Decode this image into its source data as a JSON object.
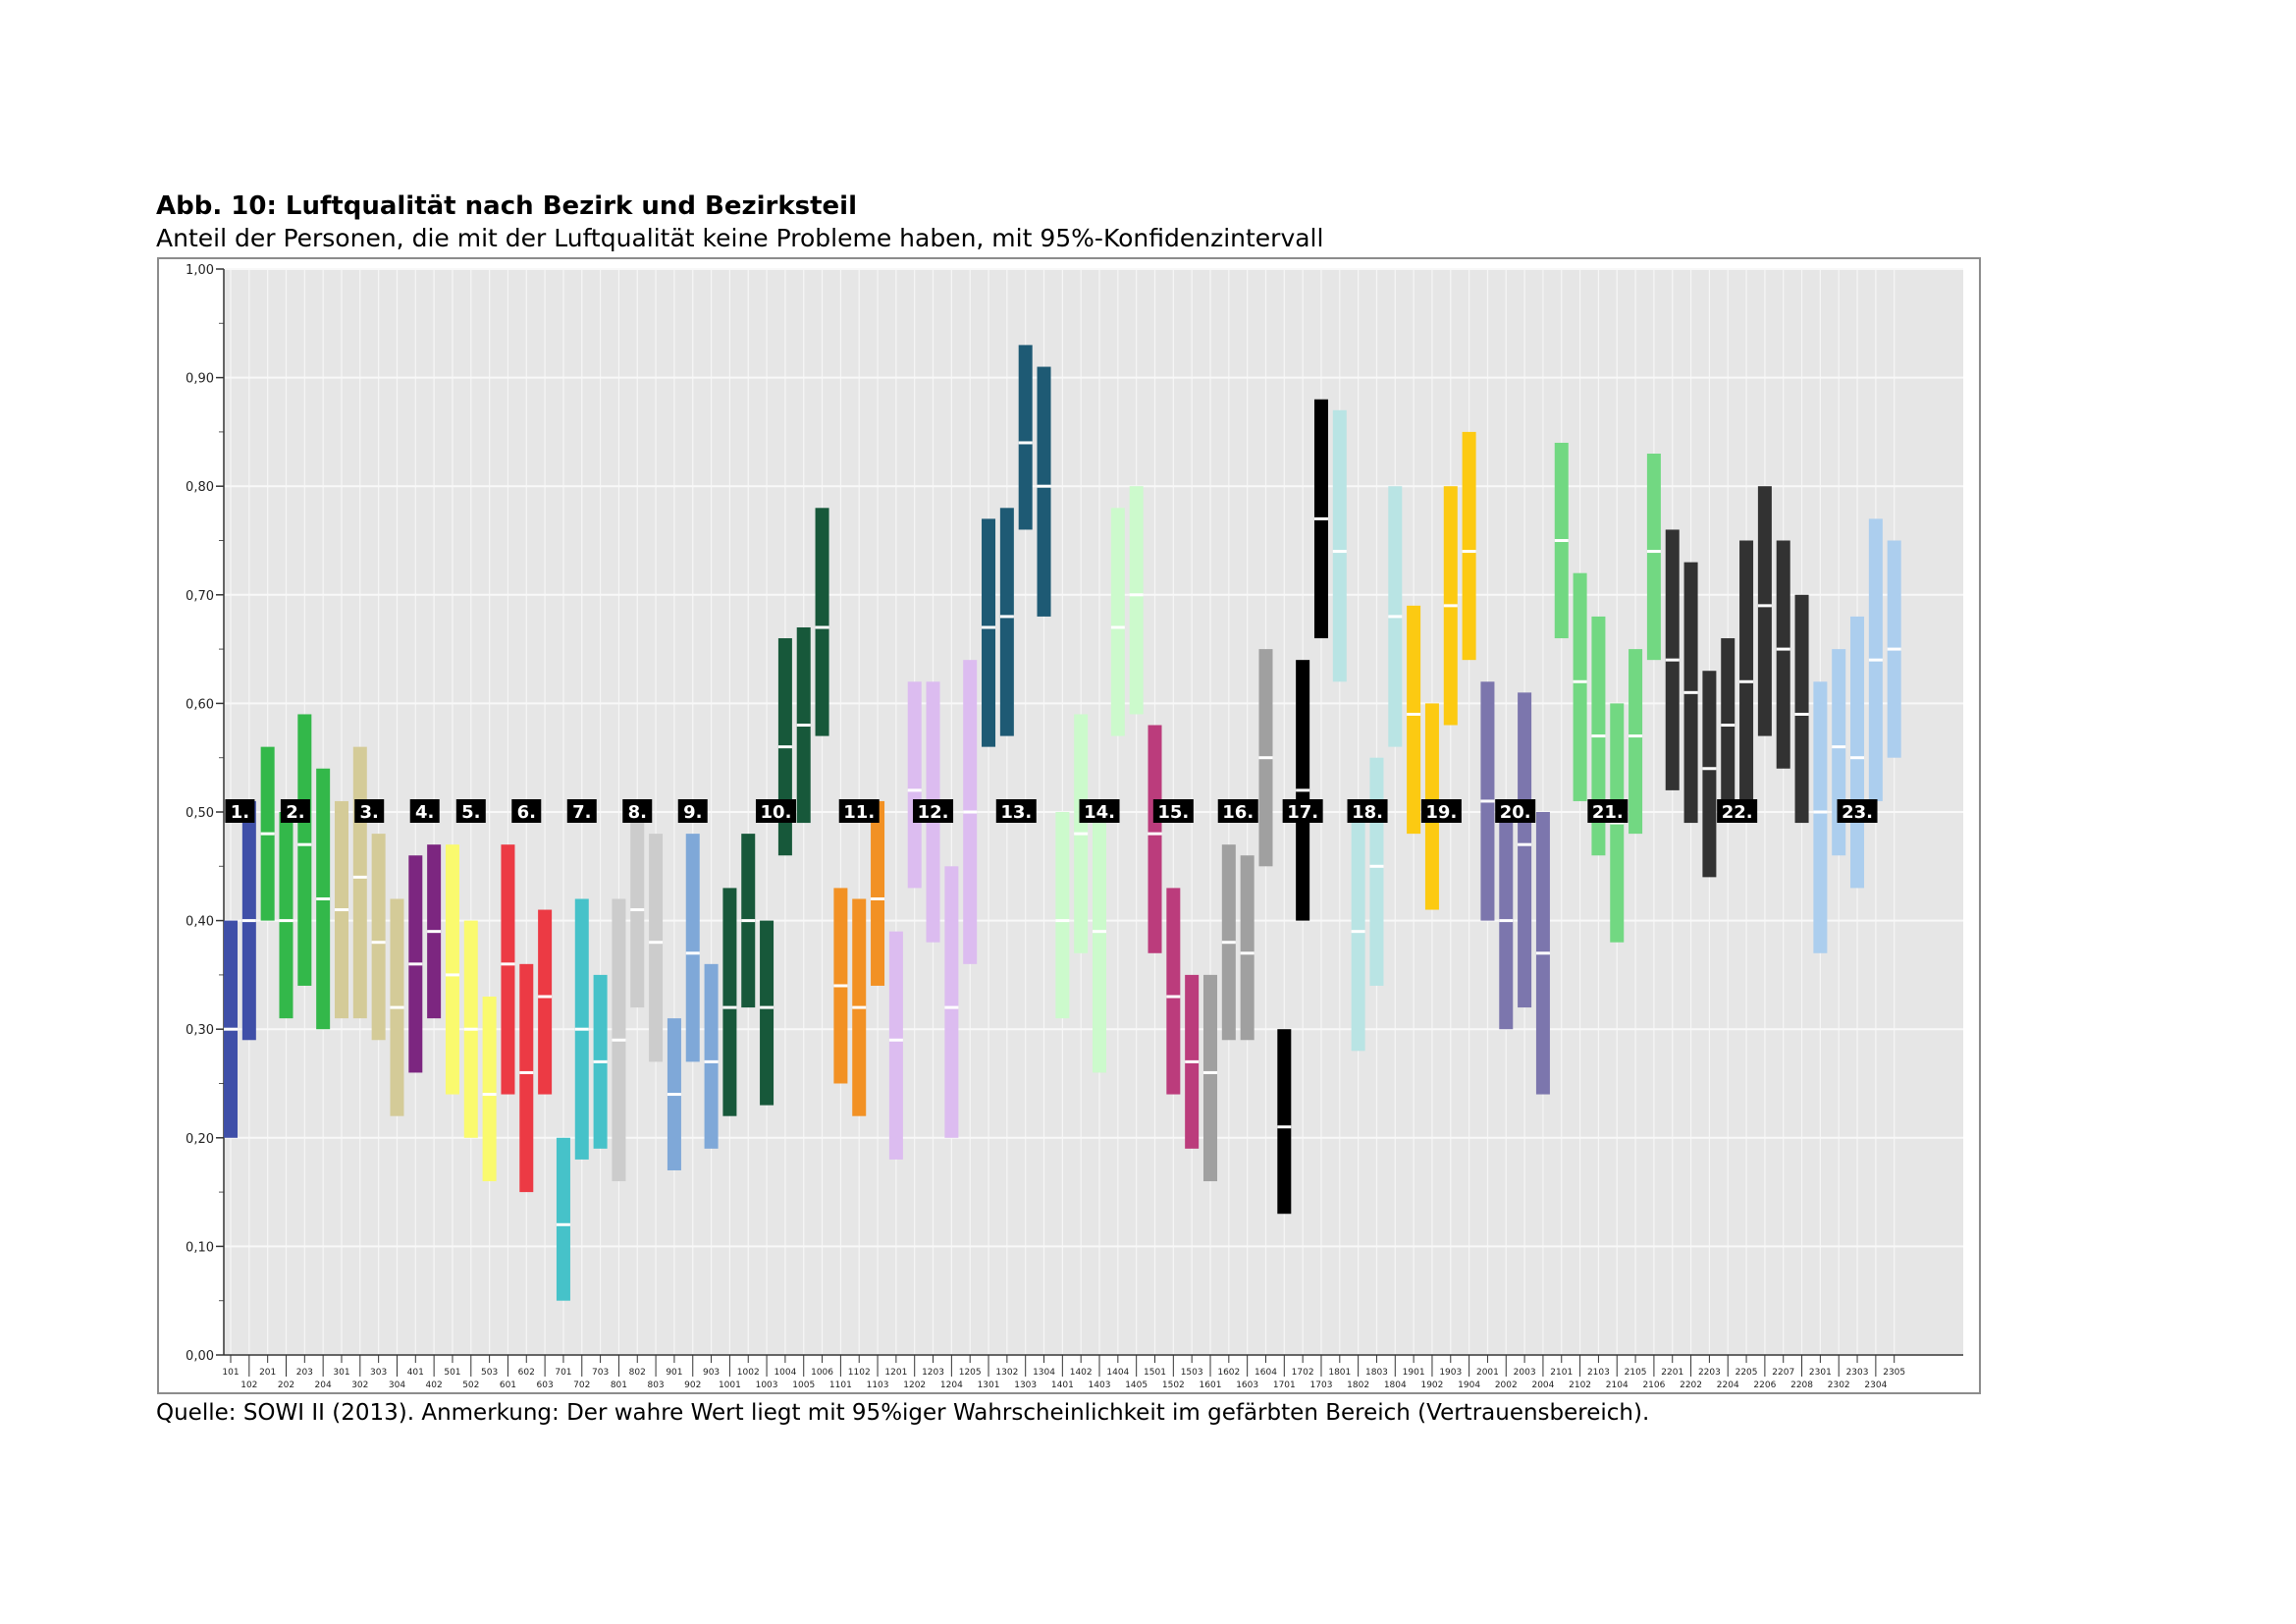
{
  "figure": {
    "title": "Abb. 10: Luftqualität nach Bezirk und Bezirksteil",
    "subtitle": "Anteil der Personen, die mit der Luftqualität keine Probleme haben, mit 95%-Konfidenzintervall",
    "note": "Quelle: SOWI II (2013). Anmerkung: Der wahre Wert liegt mit 95%iger Wahrscheinlichkeit im gefärbten Bereich (Vertrauensbereich)."
  },
  "chart_data": {
    "type": "interval",
    "title": "Abb. 10: Luftqualität nach Bezirk und Bezirksteil",
    "subtitle": "Anteil der Personen, die mit der Luftqualität keine Probleme haben, mit 95%-Konfidenzintervall",
    "ylim": [
      0,
      1
    ],
    "yticks": [
      0,
      0.1,
      0.2,
      0.3,
      0.4,
      0.5,
      0.6,
      0.7,
      0.8,
      0.9,
      1.0
    ],
    "ytick_labels": [
      "0,00",
      "0,10",
      "0,20",
      "0,30",
      "0,40",
      "0,50",
      "0,60",
      "0,70",
      "0,80",
      "0,90",
      "1,00"
    ],
    "grid": true,
    "district_colors": {
      "1": "#3f4fa8",
      "2": "#33b84a",
      "3": "#d4cb98",
      "4": "#7c2680",
      "5": "#fafa6e",
      "6": "#ec3a44",
      "7": "#46c2c9",
      "8": "#cccccc",
      "9": "#7fa8d8",
      "10": "#17583a",
      "11": "#f29124",
      "12": "#dcbcf0",
      "13": "#1e5a74",
      "14": "#ccfacc",
      "15": "#bb3c7c",
      "16": "#a0a0a0",
      "17": "#000000",
      "18": "#b9e4e4",
      "19": "#fcca12",
      "20": "#7c76ad",
      "21": "#72d882",
      "22": "#323232",
      "23": "#acceee"
    },
    "districts": [
      {
        "label": "1.",
        "parts": [
          "101",
          "102"
        ]
      },
      {
        "label": "2.",
        "parts": [
          "201",
          "202",
          "203",
          "204"
        ]
      },
      {
        "label": "3.",
        "parts": [
          "301",
          "302",
          "303",
          "304"
        ]
      },
      {
        "label": "4.",
        "parts": [
          "401",
          "402"
        ]
      },
      {
        "label": "5.",
        "parts": [
          "501",
          "502",
          "503"
        ]
      },
      {
        "label": "6.",
        "parts": [
          "601",
          "602",
          "603"
        ]
      },
      {
        "label": "7.",
        "parts": [
          "701",
          "702",
          "703"
        ]
      },
      {
        "label": "8.",
        "parts": [
          "801",
          "802",
          "803"
        ]
      },
      {
        "label": "9.",
        "parts": [
          "901",
          "902",
          "903"
        ]
      },
      {
        "label": "10.",
        "parts": [
          "1001",
          "1002",
          "1003",
          "1004",
          "1005",
          "1006"
        ]
      },
      {
        "label": "11.",
        "parts": [
          "1101",
          "1102",
          "1103"
        ]
      },
      {
        "label": "12.",
        "parts": [
          "1201",
          "1202",
          "1203",
          "1204",
          "1205"
        ]
      },
      {
        "label": "13.",
        "parts": [
          "1301",
          "1302",
          "1303",
          "1304"
        ]
      },
      {
        "label": "14.",
        "parts": [
          "1401",
          "1402",
          "1403",
          "1404",
          "1405"
        ]
      },
      {
        "label": "15.",
        "parts": [
          "1501",
          "1502",
          "1503"
        ]
      },
      {
        "label": "16.",
        "parts": [
          "1601",
          "1602",
          "1603",
          "1604"
        ]
      },
      {
        "label": "17.",
        "parts": [
          "1701",
          "1702",
          "1703"
        ]
      },
      {
        "label": "18.",
        "parts": [
          "1801",
          "1802",
          "1803",
          "1804"
        ]
      },
      {
        "label": "19.",
        "parts": [
          "1901",
          "1902",
          "1903",
          "1904"
        ]
      },
      {
        "label": "20.",
        "parts": [
          "2001",
          "2002",
          "2003",
          "2004"
        ]
      },
      {
        "label": "21.",
        "parts": [
          "2101",
          "2102",
          "2103",
          "2104",
          "2105",
          "2106"
        ]
      },
      {
        "label": "22.",
        "parts": [
          "2201",
          "2202",
          "2203",
          "2204",
          "2205",
          "2206",
          "2207",
          "2208"
        ]
      },
      {
        "label": "23.",
        "parts": [
          "2301",
          "2302",
          "2303",
          "2304",
          "2305"
        ]
      }
    ],
    "x_labels_top": [
      "101",
      "201",
      "203",
      "301",
      "303",
      "401",
      "501",
      "503",
      "602",
      "701",
      "703",
      "802",
      "901",
      "903",
      "1002",
      "1004",
      "1006",
      "1102",
      "1201",
      "1203",
      "1205",
      "1302",
      "1304",
      "1402",
      "1404",
      "1501",
      "1503",
      "1602",
      "1604",
      "1702",
      "1801",
      "1803",
      "1901",
      "1903",
      "2001",
      "2003",
      "2101",
      "2103",
      "2105",
      "2201",
      "2203",
      "2205",
      "2207",
      "2301",
      "2303",
      "2305"
    ],
    "x_labels_bottom": [
      "102",
      "202",
      "204",
      "302",
      "304",
      "402",
      "502",
      "601",
      "603",
      "702",
      "801",
      "803",
      "902",
      "1001",
      "1003",
      "1005",
      "1101",
      "1103",
      "1202",
      "1204",
      "1301",
      "1303",
      "1401",
      "1403",
      "1405",
      "1502",
      "1601",
      "1603",
      "1701",
      "1703",
      "1802",
      "1804",
      "1902",
      "1904",
      "2002",
      "2004",
      "2102",
      "2104",
      "2106",
      "2202",
      "2204",
      "2206",
      "2208",
      "2302",
      "2304"
    ],
    "series": [
      {
        "name": "101",
        "district": 1,
        "lo": 0.2,
        "est": 0.3,
        "hi": 0.4
      },
      {
        "name": "102",
        "district": 1,
        "lo": 0.29,
        "est": 0.4,
        "hi": 0.51
      },
      {
        "name": "201",
        "district": 2,
        "lo": 0.4,
        "est": 0.48,
        "hi": 0.56
      },
      {
        "name": "202",
        "district": 2,
        "lo": 0.31,
        "est": 0.4,
        "hi": 0.5
      },
      {
        "name": "203",
        "district": 2,
        "lo": 0.34,
        "est": 0.47,
        "hi": 0.59
      },
      {
        "name": "204",
        "district": 2,
        "lo": 0.3,
        "est": 0.42,
        "hi": 0.54
      },
      {
        "name": "301",
        "district": 3,
        "lo": 0.31,
        "est": 0.41,
        "hi": 0.51
      },
      {
        "name": "302",
        "district": 3,
        "lo": 0.31,
        "est": 0.44,
        "hi": 0.56
      },
      {
        "name": "303",
        "district": 3,
        "lo": 0.29,
        "est": 0.38,
        "hi": 0.48
      },
      {
        "name": "304",
        "district": 3,
        "lo": 0.22,
        "est": 0.32,
        "hi": 0.42
      },
      {
        "name": "401",
        "district": 4,
        "lo": 0.26,
        "est": 0.36,
        "hi": 0.46
      },
      {
        "name": "402",
        "district": 4,
        "lo": 0.31,
        "est": 0.39,
        "hi": 0.47
      },
      {
        "name": "501",
        "district": 5,
        "lo": 0.24,
        "est": 0.35,
        "hi": 0.47
      },
      {
        "name": "502",
        "district": 5,
        "lo": 0.2,
        "est": 0.3,
        "hi": 0.4
      },
      {
        "name": "503",
        "district": 5,
        "lo": 0.16,
        "est": 0.24,
        "hi": 0.33
      },
      {
        "name": "601",
        "district": 6,
        "lo": 0.24,
        "est": 0.36,
        "hi": 0.47
      },
      {
        "name": "602",
        "district": 6,
        "lo": 0.15,
        "est": 0.26,
        "hi": 0.36
      },
      {
        "name": "603",
        "district": 6,
        "lo": 0.24,
        "est": 0.33,
        "hi": 0.41
      },
      {
        "name": "701",
        "district": 7,
        "lo": 0.05,
        "est": 0.12,
        "hi": 0.2
      },
      {
        "name": "702",
        "district": 7,
        "lo": 0.18,
        "est": 0.3,
        "hi": 0.42
      },
      {
        "name": "703",
        "district": 7,
        "lo": 0.19,
        "est": 0.27,
        "hi": 0.35
      },
      {
        "name": "801",
        "district": 8,
        "lo": 0.16,
        "est": 0.29,
        "hi": 0.42
      },
      {
        "name": "802",
        "district": 8,
        "lo": 0.32,
        "est": 0.41,
        "hi": 0.5
      },
      {
        "name": "803",
        "district": 8,
        "lo": 0.27,
        "est": 0.38,
        "hi": 0.48
      },
      {
        "name": "901",
        "district": 9,
        "lo": 0.17,
        "est": 0.24,
        "hi": 0.31
      },
      {
        "name": "902",
        "district": 9,
        "lo": 0.27,
        "est": 0.37,
        "hi": 0.48
      },
      {
        "name": "903",
        "district": 9,
        "lo": 0.19,
        "est": 0.27,
        "hi": 0.36
      },
      {
        "name": "1001",
        "district": 10,
        "lo": 0.22,
        "est": 0.32,
        "hi": 0.43
      },
      {
        "name": "1002",
        "district": 10,
        "lo": 0.32,
        "est": 0.4,
        "hi": 0.48
      },
      {
        "name": "1003",
        "district": 10,
        "lo": 0.23,
        "est": 0.32,
        "hi": 0.4
      },
      {
        "name": "1004",
        "district": 10,
        "lo": 0.46,
        "est": 0.56,
        "hi": 0.66
      },
      {
        "name": "1005",
        "district": 10,
        "lo": 0.49,
        "est": 0.58,
        "hi": 0.67
      },
      {
        "name": "1006",
        "district": 10,
        "lo": 0.57,
        "est": 0.67,
        "hi": 0.78
      },
      {
        "name": "1101",
        "district": 11,
        "lo": 0.25,
        "est": 0.34,
        "hi": 0.43
      },
      {
        "name": "1102",
        "district": 11,
        "lo": 0.22,
        "est": 0.32,
        "hi": 0.42
      },
      {
        "name": "1103",
        "district": 11,
        "lo": 0.34,
        "est": 0.42,
        "hi": 0.51
      },
      {
        "name": "1201",
        "district": 12,
        "lo": 0.18,
        "est": 0.29,
        "hi": 0.39
      },
      {
        "name": "1202",
        "district": 12,
        "lo": 0.43,
        "est": 0.52,
        "hi": 0.62
      },
      {
        "name": "1203",
        "district": 12,
        "lo": 0.38,
        "est": 0.5,
        "hi": 0.62
      },
      {
        "name": "1204",
        "district": 12,
        "lo": 0.2,
        "est": 0.32,
        "hi": 0.45
      },
      {
        "name": "1205",
        "district": 12,
        "lo": 0.36,
        "est": 0.5,
        "hi": 0.64
      },
      {
        "name": "1301",
        "district": 13,
        "lo": 0.56,
        "est": 0.67,
        "hi": 0.77
      },
      {
        "name": "1302",
        "district": 13,
        "lo": 0.57,
        "est": 0.68,
        "hi": 0.78
      },
      {
        "name": "1303",
        "district": 13,
        "lo": 0.76,
        "est": 0.84,
        "hi": 0.93
      },
      {
        "name": "1304",
        "district": 13,
        "lo": 0.68,
        "est": 0.8,
        "hi": 0.91
      },
      {
        "name": "1401",
        "district": 14,
        "lo": 0.31,
        "est": 0.4,
        "hi": 0.5
      },
      {
        "name": "1402",
        "district": 14,
        "lo": 0.37,
        "est": 0.48,
        "hi": 0.59
      },
      {
        "name": "1403",
        "district": 14,
        "lo": 0.26,
        "est": 0.39,
        "hi": 0.51
      },
      {
        "name": "1404",
        "district": 14,
        "lo": 0.57,
        "est": 0.67,
        "hi": 0.78
      },
      {
        "name": "1405",
        "district": 14,
        "lo": 0.59,
        "est": 0.7,
        "hi": 0.8
      },
      {
        "name": "1501",
        "district": 15,
        "lo": 0.37,
        "est": 0.48,
        "hi": 0.58
      },
      {
        "name": "1502",
        "district": 15,
        "lo": 0.24,
        "est": 0.33,
        "hi": 0.43
      },
      {
        "name": "1503",
        "district": 15,
        "lo": 0.19,
        "est": 0.27,
        "hi": 0.35
      },
      {
        "name": "1601",
        "district": 16,
        "lo": 0.16,
        "est": 0.26,
        "hi": 0.35
      },
      {
        "name": "1602",
        "district": 16,
        "lo": 0.29,
        "est": 0.38,
        "hi": 0.47
      },
      {
        "name": "1603",
        "district": 16,
        "lo": 0.29,
        "est": 0.37,
        "hi": 0.46
      },
      {
        "name": "1604",
        "district": 16,
        "lo": 0.45,
        "est": 0.55,
        "hi": 0.65
      },
      {
        "name": "1701",
        "district": 17,
        "lo": 0.13,
        "est": 0.21,
        "hi": 0.3
      },
      {
        "name": "1702",
        "district": 17,
        "lo": 0.4,
        "est": 0.52,
        "hi": 0.64
      },
      {
        "name": "1703",
        "district": 17,
        "lo": 0.66,
        "est": 0.77,
        "hi": 0.88
      },
      {
        "name": "1801",
        "district": 18,
        "lo": 0.62,
        "est": 0.74,
        "hi": 0.87
      },
      {
        "name": "1802",
        "district": 18,
        "lo": 0.28,
        "est": 0.39,
        "hi": 0.5
      },
      {
        "name": "1803",
        "district": 18,
        "lo": 0.34,
        "est": 0.45,
        "hi": 0.55
      },
      {
        "name": "1804",
        "district": 18,
        "lo": 0.56,
        "est": 0.68,
        "hi": 0.8
      },
      {
        "name": "1901",
        "district": 19,
        "lo": 0.48,
        "est": 0.59,
        "hi": 0.69
      },
      {
        "name": "1902",
        "district": 19,
        "lo": 0.41,
        "est": 0.51,
        "hi": 0.6
      },
      {
        "name": "1903",
        "district": 19,
        "lo": 0.58,
        "est": 0.69,
        "hi": 0.8
      },
      {
        "name": "1904",
        "district": 19,
        "lo": 0.64,
        "est": 0.74,
        "hi": 0.85
      },
      {
        "name": "2001",
        "district": 20,
        "lo": 0.4,
        "est": 0.51,
        "hi": 0.62
      },
      {
        "name": "2002",
        "district": 20,
        "lo": 0.3,
        "est": 0.4,
        "hi": 0.5
      },
      {
        "name": "2003",
        "district": 20,
        "lo": 0.32,
        "est": 0.47,
        "hi": 0.61
      },
      {
        "name": "2004",
        "district": 20,
        "lo": 0.24,
        "est": 0.37,
        "hi": 0.5
      },
      {
        "name": "2101",
        "district": 21,
        "lo": 0.66,
        "est": 0.75,
        "hi": 0.84
      },
      {
        "name": "2102",
        "district": 21,
        "lo": 0.51,
        "est": 0.62,
        "hi": 0.72
      },
      {
        "name": "2103",
        "district": 21,
        "lo": 0.46,
        "est": 0.57,
        "hi": 0.68
      },
      {
        "name": "2104",
        "district": 21,
        "lo": 0.38,
        "est": 0.49,
        "hi": 0.6
      },
      {
        "name": "2105",
        "district": 21,
        "lo": 0.48,
        "est": 0.57,
        "hi": 0.65
      },
      {
        "name": "2106",
        "district": 21,
        "lo": 0.64,
        "est": 0.74,
        "hi": 0.83
      },
      {
        "name": "2201",
        "district": 22,
        "lo": 0.52,
        "est": 0.64,
        "hi": 0.76
      },
      {
        "name": "2202",
        "district": 22,
        "lo": 0.49,
        "est": 0.61,
        "hi": 0.73
      },
      {
        "name": "2203",
        "district": 22,
        "lo": 0.44,
        "est": 0.54,
        "hi": 0.63
      },
      {
        "name": "2204",
        "district": 22,
        "lo": 0.5,
        "est": 0.58,
        "hi": 0.66
      },
      {
        "name": "2205",
        "district": 22,
        "lo": 0.5,
        "est": 0.62,
        "hi": 0.75
      },
      {
        "name": "2206",
        "district": 22,
        "lo": 0.57,
        "est": 0.69,
        "hi": 0.8
      },
      {
        "name": "2207",
        "district": 22,
        "lo": 0.54,
        "est": 0.65,
        "hi": 0.75
      },
      {
        "name": "2208",
        "district": 22,
        "lo": 0.49,
        "est": 0.59,
        "hi": 0.7
      },
      {
        "name": "2301",
        "district": 23,
        "lo": 0.37,
        "est": 0.5,
        "hi": 0.62
      },
      {
        "name": "2302",
        "district": 23,
        "lo": 0.46,
        "est": 0.56,
        "hi": 0.65
      },
      {
        "name": "2303",
        "district": 23,
        "lo": 0.43,
        "est": 0.55,
        "hi": 0.68
      },
      {
        "name": "2304",
        "district": 23,
        "lo": 0.51,
        "est": 0.64,
        "hi": 0.77
      },
      {
        "name": "2305",
        "district": 23,
        "lo": 0.55,
        "est": 0.65,
        "hi": 0.75
      }
    ]
  }
}
